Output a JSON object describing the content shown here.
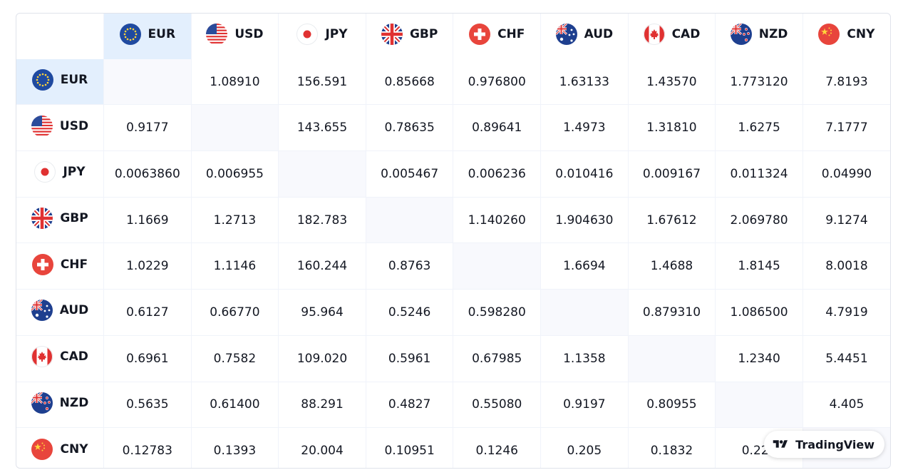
{
  "currencies": [
    {
      "code": "EUR",
      "flag": "eu-flag-icon"
    },
    {
      "code": "USD",
      "flag": "us-flag-icon"
    },
    {
      "code": "JPY",
      "flag": "jp-flag-icon"
    },
    {
      "code": "GBP",
      "flag": "gb-flag-icon"
    },
    {
      "code": "CHF",
      "flag": "ch-flag-icon"
    },
    {
      "code": "AUD",
      "flag": "au-flag-icon"
    },
    {
      "code": "CAD",
      "flag": "ca-flag-icon"
    },
    {
      "code": "NZD",
      "flag": "nz-flag-icon"
    },
    {
      "code": "CNY",
      "flag": "cn-flag-icon"
    }
  ],
  "rates": [
    [
      "",
      "1.08910",
      "156.591",
      "0.85668",
      "0.976800",
      "1.63133",
      "1.43570",
      "1.773120",
      "7.8193"
    ],
    [
      "0.9177",
      "",
      "143.655",
      "0.78635",
      "0.89641",
      "1.4973",
      "1.31810",
      "1.6275",
      "7.1777"
    ],
    [
      "0.0063860",
      "0.006955",
      "",
      "0.005467",
      "0.006236",
      "0.010416",
      "0.009167",
      "0.011324",
      "0.04990"
    ],
    [
      "1.1669",
      "1.2713",
      "182.783",
      "",
      "1.140260",
      "1.904630",
      "1.67612",
      "2.069780",
      "9.1274"
    ],
    [
      "1.0229",
      "1.1146",
      "160.244",
      "0.8763",
      "",
      "1.6694",
      "1.4688",
      "1.8145",
      "8.0018"
    ],
    [
      "0.6127",
      "0.66770",
      "95.964",
      "0.5246",
      "0.598280",
      "",
      "0.879310",
      "1.086500",
      "4.7919"
    ],
    [
      "0.6961",
      "0.7582",
      "109.020",
      "0.5961",
      "0.67985",
      "1.1358",
      "",
      "1.2340",
      "5.4451"
    ],
    [
      "0.5635",
      "0.61400",
      "88.291",
      "0.4827",
      "0.55080",
      "0.9197",
      "0.80955",
      "",
      "4.405"
    ],
    [
      "0.12783",
      "0.1393",
      "20.004",
      "0.10951",
      "0.1246",
      "0.205",
      "0.1832",
      "0.223",
      ""
    ]
  ],
  "highlighted": "EUR",
  "colors": {
    "highlight": "#e3effd",
    "diagonal": "#f8f9fd",
    "border": "#e0e3eb",
    "text": "#131722"
  },
  "branding": {
    "label": "TradingView",
    "icon": "tradingview-logo-icon"
  }
}
